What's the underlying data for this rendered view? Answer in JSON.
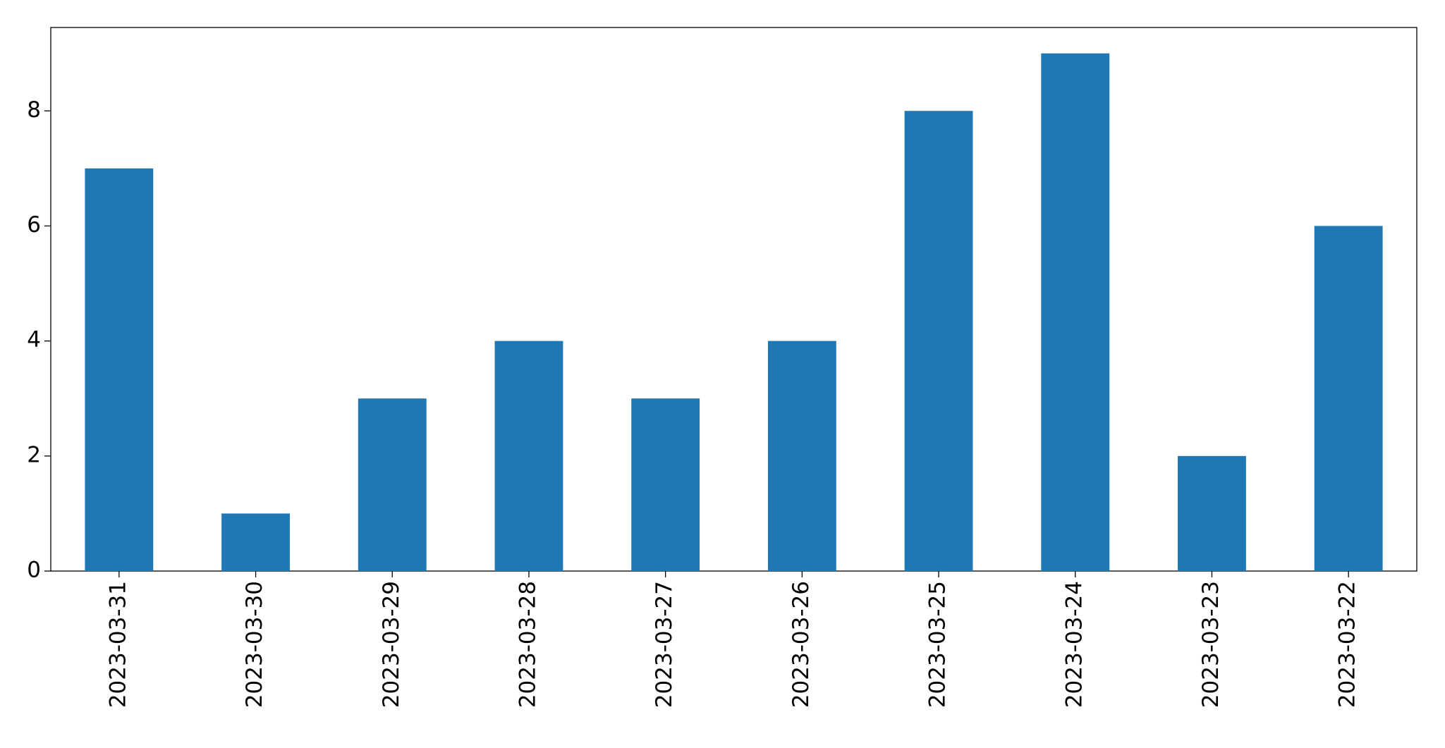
{
  "chart_data": {
    "type": "bar",
    "categories": [
      "2023-03-31",
      "2023-03-30",
      "2023-03-29",
      "2023-03-28",
      "2023-03-27",
      "2023-03-26",
      "2023-03-25",
      "2023-03-24",
      "2023-03-23",
      "2023-03-22"
    ],
    "values": [
      7,
      1,
      3,
      4,
      3,
      4,
      8,
      9,
      2,
      6
    ],
    "color": "#1f77b4",
    "ylim": [
      0,
      9.45
    ],
    "yticks": [
      0,
      2,
      4,
      6,
      8
    ],
    "grid": false
  }
}
